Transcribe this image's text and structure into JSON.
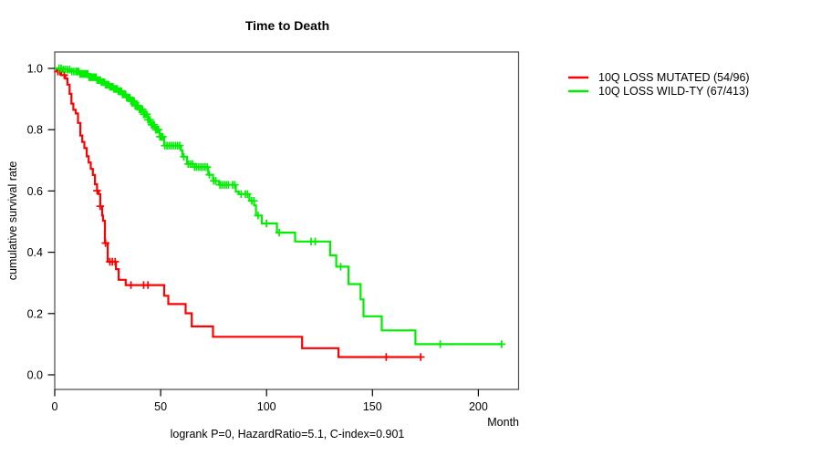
{
  "chart_data": {
    "type": "line",
    "subtype": "kaplan_meier_step_survival",
    "title": "Time to Death",
    "xlabel": "Month",
    "ylabel": "cumulative survival rate",
    "annotation": "logrank P=0, HazardRatio=5.1, C-index=0.901",
    "xlim": [
      0,
      219
    ],
    "ylim": [
      0,
      1.05
    ],
    "grid": false,
    "legend_position": "right-outside",
    "xticks": {
      "values": [
        0,
        50,
        100,
        150,
        200
      ],
      "labels": [
        "0",
        "50",
        "100",
        "150",
        "200"
      ]
    },
    "yticks": {
      "values": [
        0,
        0.2,
        0.4,
        0.6,
        0.8,
        1.0
      ],
      "labels": [
        "0.0",
        "0.2",
        "0.4",
        "0.6",
        "0.8",
        "1.0"
      ]
    },
    "colors": {
      "axis": "#4a4a4a",
      "tick": "#000000",
      "text": "#000000"
    },
    "series": [
      {
        "name": "10Q LOSS MUTATED (54/96)",
        "color": "#ff0000",
        "steps": [
          [
            0,
            1.0
          ],
          [
            1,
            0.99
          ],
          [
            3,
            0.978
          ],
          [
            5,
            0.967
          ],
          [
            6,
            0.947
          ],
          [
            7,
            0.917
          ],
          [
            7.9,
            0.885
          ],
          [
            8.8,
            0.865
          ],
          [
            9.9,
            0.853
          ],
          [
            11,
            0.822
          ],
          [
            12.1,
            0.781
          ],
          [
            13,
            0.76
          ],
          [
            14,
            0.74
          ],
          [
            15.1,
            0.713
          ],
          [
            16,
            0.693
          ],
          [
            17,
            0.672
          ],
          [
            18,
            0.652
          ],
          [
            19,
            0.622
          ],
          [
            20,
            0.601
          ],
          [
            20.7,
            0.59
          ],
          [
            21.5,
            0.55
          ],
          [
            22.4,
            0.52
          ],
          [
            22.8,
            0.503
          ],
          [
            23.7,
            0.43
          ],
          [
            25,
            0.369
          ],
          [
            28.9,
            0.345
          ],
          [
            30.2,
            0.31
          ],
          [
            33.5,
            0.293
          ],
          [
            51.7,
            0.258
          ],
          [
            53.6,
            0.231
          ],
          [
            61.8,
            0.201
          ],
          [
            64.7,
            0.158
          ],
          [
            74.7,
            0.124
          ],
          [
            116.8,
            0.087
          ],
          [
            134,
            0.058
          ],
          [
            172.8,
            0.058
          ]
        ],
        "censor_months": [
          1.5,
          2.5,
          4.5,
          20,
          21.5,
          24,
          26,
          27.2,
          28.5,
          36,
          42,
          44,
          156.5,
          172.8
        ]
      },
      {
        "name": "10Q LOSS WILD-TY (67/413)",
        "color": "#00ee00",
        "steps": [
          [
            0,
            1.0
          ],
          [
            4,
            0.996
          ],
          [
            8,
            0.99
          ],
          [
            12,
            0.982
          ],
          [
            16,
            0.971
          ],
          [
            20,
            0.962
          ],
          [
            22,
            0.955
          ],
          [
            24,
            0.947
          ],
          [
            26,
            0.94
          ],
          [
            28,
            0.933
          ],
          [
            30,
            0.926
          ],
          [
            32,
            0.915
          ],
          [
            34,
            0.905
          ],
          [
            36,
            0.893
          ],
          [
            38,
            0.878
          ],
          [
            40,
            0.866
          ],
          [
            42,
            0.85
          ],
          [
            44,
            0.832
          ],
          [
            45.3,
            0.816
          ],
          [
            47.4,
            0.8
          ],
          [
            49.6,
            0.777
          ],
          [
            51.7,
            0.748
          ],
          [
            59.6,
            0.732
          ],
          [
            60.3,
            0.712
          ],
          [
            62.5,
            0.688
          ],
          [
            66,
            0.678
          ],
          [
            72.5,
            0.653
          ],
          [
            74.7,
            0.633
          ],
          [
            77.6,
            0.62
          ],
          [
            85.5,
            0.598
          ],
          [
            86.9,
            0.59
          ],
          [
            91.9,
            0.568
          ],
          [
            94.1,
            0.553
          ],
          [
            95,
            0.52
          ],
          [
            97.7,
            0.494
          ],
          [
            104.9,
            0.464
          ],
          [
            113.5,
            0.435
          ],
          [
            130,
            0.39
          ],
          [
            132.9,
            0.353
          ],
          [
            138.7,
            0.296
          ],
          [
            144.4,
            0.246
          ],
          [
            145.8,
            0.191
          ],
          [
            154.4,
            0.145
          ],
          [
            170.3,
            0.1
          ],
          [
            211.2,
            0.1
          ]
        ],
        "censor_months": [
          2,
          3,
          4,
          5,
          6,
          7,
          8,
          9,
          10,
          10.7,
          11.3,
          12,
          12.6,
          13.2,
          13.8,
          14.4,
          15,
          15.6,
          16.2,
          16.8,
          17.4,
          18,
          18.5,
          19,
          19.5,
          20,
          20.5,
          21,
          21.5,
          22,
          22.5,
          23,
          23.5,
          24,
          24.5,
          25,
          25.5,
          26,
          26.5,
          27,
          27.5,
          28,
          28.5,
          29,
          29.5,
          30,
          30.5,
          31,
          31.5,
          32,
          32.5,
          33,
          33.5,
          34,
          34.5,
          35,
          35.5,
          36,
          36.5,
          37,
          37.5,
          38,
          38.5,
          39,
          39.5,
          40,
          40.5,
          41,
          41.5,
          42,
          42.5,
          43,
          43.5,
          44,
          44.5,
          45,
          45.7,
          46.4,
          47,
          47.7,
          48.4,
          49,
          49.7,
          50.4,
          51,
          52,
          53,
          54,
          55,
          56,
          57,
          58,
          59,
          61,
          63,
          64,
          65,
          66,
          67,
          68,
          69,
          70,
          71,
          72,
          73,
          75,
          76,
          78,
          79,
          80,
          81,
          82,
          84,
          85,
          88,
          90,
          91,
          93,
          94,
          96,
          100,
          106,
          121,
          123,
          135,
          182,
          211
        ]
      }
    ]
  }
}
